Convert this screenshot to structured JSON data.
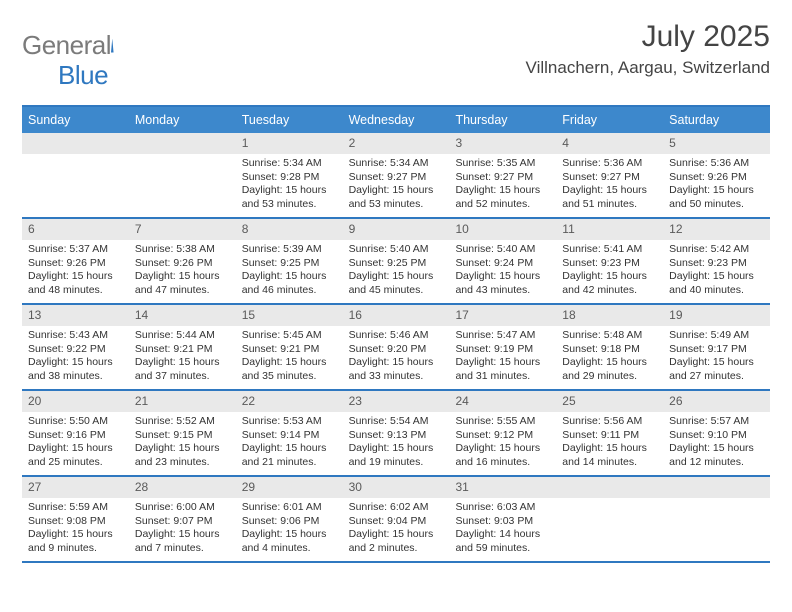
{
  "logo": {
    "word1": "General",
    "word2": "Blue"
  },
  "title": "July 2025",
  "location": "Villnachern, Aargau, Switzerland",
  "colors": {
    "header_bg": "#3d88cc",
    "header_border": "#2f78c0",
    "daynum_bg": "#e9e9e9",
    "text": "#333333",
    "logo_grey": "#7b7b7b",
    "logo_blue": "#2f78c0"
  },
  "dayNames": [
    "Sunday",
    "Monday",
    "Tuesday",
    "Wednesday",
    "Thursday",
    "Friday",
    "Saturday"
  ],
  "weeks": [
    [
      null,
      null,
      {
        "n": "1",
        "sr": "5:34 AM",
        "ss": "9:28 PM",
        "dl": "15 hours and 53 minutes."
      },
      {
        "n": "2",
        "sr": "5:34 AM",
        "ss": "9:27 PM",
        "dl": "15 hours and 53 minutes."
      },
      {
        "n": "3",
        "sr": "5:35 AM",
        "ss": "9:27 PM",
        "dl": "15 hours and 52 minutes."
      },
      {
        "n": "4",
        "sr": "5:36 AM",
        "ss": "9:27 PM",
        "dl": "15 hours and 51 minutes."
      },
      {
        "n": "5",
        "sr": "5:36 AM",
        "ss": "9:26 PM",
        "dl": "15 hours and 50 minutes."
      }
    ],
    [
      {
        "n": "6",
        "sr": "5:37 AM",
        "ss": "9:26 PM",
        "dl": "15 hours and 48 minutes."
      },
      {
        "n": "7",
        "sr": "5:38 AM",
        "ss": "9:26 PM",
        "dl": "15 hours and 47 minutes."
      },
      {
        "n": "8",
        "sr": "5:39 AM",
        "ss": "9:25 PM",
        "dl": "15 hours and 46 minutes."
      },
      {
        "n": "9",
        "sr": "5:40 AM",
        "ss": "9:25 PM",
        "dl": "15 hours and 45 minutes."
      },
      {
        "n": "10",
        "sr": "5:40 AM",
        "ss": "9:24 PM",
        "dl": "15 hours and 43 minutes."
      },
      {
        "n": "11",
        "sr": "5:41 AM",
        "ss": "9:23 PM",
        "dl": "15 hours and 42 minutes."
      },
      {
        "n": "12",
        "sr": "5:42 AM",
        "ss": "9:23 PM",
        "dl": "15 hours and 40 minutes."
      }
    ],
    [
      {
        "n": "13",
        "sr": "5:43 AM",
        "ss": "9:22 PM",
        "dl": "15 hours and 38 minutes."
      },
      {
        "n": "14",
        "sr": "5:44 AM",
        "ss": "9:21 PM",
        "dl": "15 hours and 37 minutes."
      },
      {
        "n": "15",
        "sr": "5:45 AM",
        "ss": "9:21 PM",
        "dl": "15 hours and 35 minutes."
      },
      {
        "n": "16",
        "sr": "5:46 AM",
        "ss": "9:20 PM",
        "dl": "15 hours and 33 minutes."
      },
      {
        "n": "17",
        "sr": "5:47 AM",
        "ss": "9:19 PM",
        "dl": "15 hours and 31 minutes."
      },
      {
        "n": "18",
        "sr": "5:48 AM",
        "ss": "9:18 PM",
        "dl": "15 hours and 29 minutes."
      },
      {
        "n": "19",
        "sr": "5:49 AM",
        "ss": "9:17 PM",
        "dl": "15 hours and 27 minutes."
      }
    ],
    [
      {
        "n": "20",
        "sr": "5:50 AM",
        "ss": "9:16 PM",
        "dl": "15 hours and 25 minutes."
      },
      {
        "n": "21",
        "sr": "5:52 AM",
        "ss": "9:15 PM",
        "dl": "15 hours and 23 minutes."
      },
      {
        "n": "22",
        "sr": "5:53 AM",
        "ss": "9:14 PM",
        "dl": "15 hours and 21 minutes."
      },
      {
        "n": "23",
        "sr": "5:54 AM",
        "ss": "9:13 PM",
        "dl": "15 hours and 19 minutes."
      },
      {
        "n": "24",
        "sr": "5:55 AM",
        "ss": "9:12 PM",
        "dl": "15 hours and 16 minutes."
      },
      {
        "n": "25",
        "sr": "5:56 AM",
        "ss": "9:11 PM",
        "dl": "15 hours and 14 minutes."
      },
      {
        "n": "26",
        "sr": "5:57 AM",
        "ss": "9:10 PM",
        "dl": "15 hours and 12 minutes."
      }
    ],
    [
      {
        "n": "27",
        "sr": "5:59 AM",
        "ss": "9:08 PM",
        "dl": "15 hours and 9 minutes."
      },
      {
        "n": "28",
        "sr": "6:00 AM",
        "ss": "9:07 PM",
        "dl": "15 hours and 7 minutes."
      },
      {
        "n": "29",
        "sr": "6:01 AM",
        "ss": "9:06 PM",
        "dl": "15 hours and 4 minutes."
      },
      {
        "n": "30",
        "sr": "6:02 AM",
        "ss": "9:04 PM",
        "dl": "15 hours and 2 minutes."
      },
      {
        "n": "31",
        "sr": "6:03 AM",
        "ss": "9:03 PM",
        "dl": "14 hours and 59 minutes."
      },
      null,
      null
    ]
  ],
  "labels": {
    "sunrise": "Sunrise: ",
    "sunset": "Sunset: ",
    "daylight": "Daylight: "
  }
}
